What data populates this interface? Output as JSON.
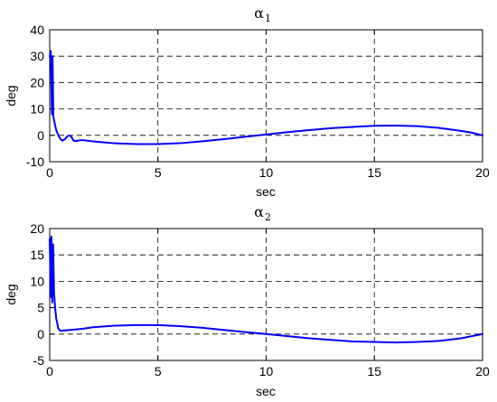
{
  "chart_data": [
    {
      "type": "line",
      "title": "α",
      "title_subscript": "1",
      "xlabel": "sec",
      "ylabel": "deg",
      "xlim": [
        0,
        20
      ],
      "ylim": [
        -10,
        40
      ],
      "xticks": [
        0,
        5,
        10,
        15,
        20
      ],
      "yticks": [
        -10,
        0,
        10,
        20,
        30,
        40
      ],
      "grid": true,
      "color": "#0000ff",
      "series": [
        {
          "x": [
            0,
            0.05,
            0.1,
            0.13,
            0.17,
            0.22,
            0.3,
            0.4,
            0.5,
            0.6,
            0.7,
            0.8,
            0.9,
            1.0,
            1.1,
            1.2,
            1.3,
            1.5,
            1.7,
            2.0,
            2.5,
            3,
            4,
            5,
            6,
            7,
            8,
            9,
            10,
            11,
            12,
            13,
            14,
            15,
            16,
            17,
            18,
            19,
            19.5,
            20
          ],
          "y": [
            30,
            32,
            8,
            30,
            7,
            5,
            2,
            0,
            -1.5,
            -2,
            -1.5,
            -0.5,
            0,
            -0.5,
            -2,
            -2.2,
            -2,
            -1.8,
            -2,
            -2.3,
            -2.7,
            -3,
            -3.3,
            -3.3,
            -3,
            -2.3,
            -1.5,
            -0.6,
            0.3,
            1.2,
            2,
            2.7,
            3.2,
            3.6,
            3.7,
            3.5,
            2.8,
            1.7,
            1,
            0
          ]
        }
      ]
    },
    {
      "type": "line",
      "title": "α",
      "title_subscript": "2",
      "xlabel": "sec",
      "ylabel": "deg",
      "xlim": [
        0,
        20
      ],
      "ylim": [
        -5,
        20
      ],
      "xticks": [
        0,
        5,
        10,
        15,
        20
      ],
      "yticks": [
        -5,
        0,
        5,
        10,
        15,
        20
      ],
      "grid": true,
      "color": "#0000ff",
      "series": [
        {
          "x": [
            0,
            0.05,
            0.08,
            0.12,
            0.16,
            0.2,
            0.25,
            0.3,
            0.4,
            0.5,
            0.7,
            1.0,
            1.5,
            2,
            3,
            4,
            5,
            6,
            7,
            8,
            9,
            10,
            11,
            12,
            13,
            14,
            15,
            16,
            17,
            18,
            19,
            19.5,
            20
          ],
          "y": [
            18,
            7,
            18.5,
            6,
            17,
            8,
            5,
            3,
            1,
            0.6,
            0.7,
            0.8,
            1,
            1.3,
            1.6,
            1.7,
            1.7,
            1.5,
            1.2,
            0.8,
            0.4,
            0,
            -0.4,
            -0.8,
            -1.1,
            -1.4,
            -1.5,
            -1.6,
            -1.5,
            -1.3,
            -0.8,
            -0.4,
            0
          ]
        }
      ]
    }
  ]
}
